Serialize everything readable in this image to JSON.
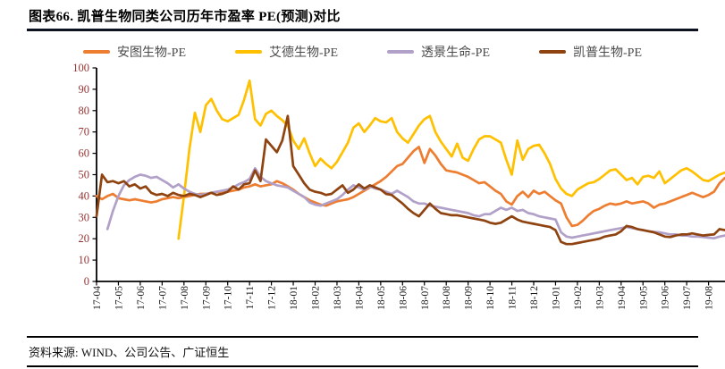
{
  "header": {
    "title": "图表66.  凯普生物同类公司历年市盈率 PE(预测)对比"
  },
  "footer": {
    "source": "资料来源: WIND、公司公告、广证恒生"
  },
  "chart_data": {
    "type": "line",
    "title": "凯普生物同类公司历年市盈率 PE(预测)对比",
    "xlabel": "",
    "ylabel": "",
    "ylim": [
      0,
      100
    ],
    "y_tick_step": 10,
    "grid": false,
    "legend_position": "top",
    "sampling": "approx. weekly (4 points per month label)",
    "axis_colors": {
      "y_tick_label": "#943634",
      "x_tick_label": "#1a1a1a",
      "axis_line": "#000000"
    },
    "categories": [
      "17-04",
      "17-05",
      "17-06",
      "17-07",
      "17-08",
      "17-09",
      "17-10",
      "17-11",
      "17-12",
      "18-01",
      "18-02",
      "18-03",
      "18-04",
      "18-05",
      "18-06",
      "18-07",
      "18-08",
      "18-09",
      "18-10",
      "18-11",
      "18-12",
      "19-01",
      "19-02",
      "19-03",
      "19-04",
      "19-05",
      "19-06",
      "19-07",
      "19-08"
    ],
    "series": [
      {
        "id": "antu-pe",
        "name": "安图生物-PE",
        "color": "#ED7D31",
        "start_month_index": 0,
        "step_months": 0.25,
        "values": [
          40,
          38.5,
          40,
          41,
          39,
          38.5,
          38,
          38.5,
          38,
          37.5,
          37,
          37.5,
          38.5,
          39,
          39.5,
          39,
          39.5,
          40,
          40.5,
          41,
          41,
          41.5,
          42,
          41.5,
          42,
          42.5,
          43,
          44,
          44.5,
          45.5,
          44.5,
          45,
          45.5,
          47,
          46,
          44.5,
          43,
          41,
          39.5,
          38,
          37,
          36,
          35.5,
          36.5,
          37.5,
          38,
          38.5,
          39.5,
          41,
          42.5,
          44,
          45.5,
          47,
          49,
          51.5,
          54,
          55,
          58,
          61,
          63,
          55.5,
          62,
          59,
          55,
          52,
          51.5,
          51,
          50,
          49,
          47.5,
          46,
          46.5,
          44.5,
          42.5,
          41,
          37.5,
          36,
          40,
          42,
          39.5,
          42.5,
          41,
          42,
          40,
          38,
          36.5,
          30,
          26,
          26.5,
          28.5,
          31,
          33,
          34,
          35.5,
          36.5,
          36,
          36.5,
          37.5,
          36.5,
          37,
          37.5,
          36.5,
          34.5,
          36,
          36.5,
          37.5,
          38.5,
          39.5,
          40.5,
          41.5,
          40.5,
          39.5,
          40.5,
          42,
          46,
          48.5,
          49.5,
          50
        ]
      },
      {
        "id": "aide-pe",
        "name": "艾德生物-PE",
        "color": "#FFC000",
        "start_month_index": 0,
        "step_months": 0.25,
        "values": [
          null,
          null,
          null,
          null,
          null,
          null,
          null,
          null,
          null,
          null,
          null,
          null,
          null,
          null,
          null,
          20,
          40,
          62,
          79,
          70,
          82.5,
          85.5,
          80,
          76,
          75,
          76.5,
          78,
          85,
          94,
          76,
          73,
          78.5,
          80,
          77.5,
          75.5,
          73,
          66,
          62,
          67,
          60,
          54,
          57.5,
          55,
          53,
          56,
          60.5,
          65,
          72,
          74,
          70,
          73,
          76.5,
          75,
          74.5,
          76.5,
          70,
          67,
          65,
          69,
          73,
          76,
          77.5,
          70,
          65.5,
          62,
          58.5,
          64.5,
          58,
          56.5,
          62,
          66.5,
          68,
          68,
          66.5,
          65,
          57,
          50,
          66,
          57,
          62,
          63.5,
          64,
          60,
          55,
          48,
          43.5,
          41,
          40,
          43,
          44.5,
          46,
          46.5,
          48,
          50,
          52,
          52.5,
          50,
          47.5,
          48.5,
          45.5,
          49,
          49.5,
          48.5,
          51.5,
          46,
          48,
          50,
          52,
          53,
          51.5,
          49.5,
          47.5,
          47,
          48.5,
          50,
          51,
          52,
          53.5
        ]
      },
      {
        "id": "toujing-pe",
        "name": "透景生命-PE",
        "color": "#B1A0C7",
        "start_month_index": 0,
        "step_months": 0.25,
        "values": [
          null,
          null,
          24.5,
          33,
          40,
          45,
          47.5,
          49,
          50,
          49.5,
          48.5,
          49,
          47.5,
          46,
          44,
          45.5,
          43.5,
          42,
          41,
          40.5,
          41,
          41.5,
          42,
          42.5,
          43,
          44,
          45.5,
          46.5,
          48,
          53,
          49,
          47,
          46,
          45,
          44.5,
          44,
          42.5,
          41,
          39.5,
          37,
          36,
          35.5,
          36.5,
          37.5,
          38.5,
          40.5,
          43,
          45,
          44,
          43,
          44.5,
          43.5,
          43,
          42,
          41,
          42.5,
          41,
          39.5,
          37.5,
          36.5,
          36.5,
          35.5,
          35,
          34.5,
          34,
          33.5,
          33,
          32.5,
          32,
          31,
          30.5,
          31.5,
          31.5,
          33,
          34.5,
          33.5,
          34.5,
          33,
          33.5,
          32,
          31.5,
          30.5,
          30,
          29.5,
          29,
          23,
          21,
          20.5,
          21,
          21.5,
          22,
          22.5,
          23,
          23.5,
          24,
          24.5,
          25,
          25.5,
          25,
          24.5,
          24,
          23.5,
          23.2,
          23,
          22.5,
          22,
          22,
          21.5,
          21.5,
          21,
          21,
          20.8,
          20.5,
          20.2,
          21,
          21.5,
          22,
          22
        ]
      },
      {
        "id": "kaipu-pe",
        "name": "凯普生物-PE",
        "color": "#8F4310",
        "start_month_index": 0,
        "step_months": 0.25,
        "values": [
          30.5,
          50,
          46.5,
          47,
          46,
          47,
          44.5,
          45.5,
          43.5,
          44.5,
          41.5,
          40.5,
          41,
          40,
          41.5,
          40.5,
          40,
          41,
          40.5,
          39.5,
          40.5,
          41.5,
          40.5,
          41,
          42,
          44.5,
          43,
          45.5,
          46,
          52,
          47,
          66.5,
          63.5,
          60.5,
          66,
          77.5,
          54,
          50,
          46,
          43,
          42,
          41.5,
          40.5,
          41,
          43,
          45,
          41.5,
          43,
          45.5,
          43.5,
          45,
          44,
          43,
          41,
          40.5,
          38.5,
          36.5,
          34,
          32,
          30.5,
          33.5,
          36.5,
          34,
          32,
          31.5,
          31,
          31,
          30.5,
          30,
          29.5,
          29,
          28.5,
          27.5,
          27,
          27.5,
          29,
          30.5,
          29,
          28,
          27.5,
          27,
          26.5,
          26,
          25.5,
          24,
          18.5,
          17.5,
          17.5,
          18,
          18.5,
          19,
          19.5,
          20,
          21,
          21.5,
          22,
          23.5,
          26,
          25.5,
          24.5,
          24,
          23.5,
          23,
          22,
          21,
          20.8,
          21.5,
          22,
          22,
          22.5,
          22,
          21.5,
          21.8,
          22,
          24.5,
          24,
          23.5,
          23.5
        ]
      }
    ]
  }
}
